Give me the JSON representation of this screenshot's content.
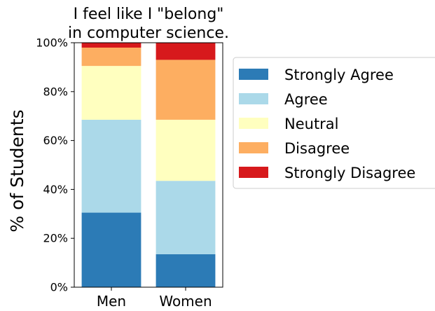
{
  "chart_data": {
    "type": "bar",
    "stacked": true,
    "title": "I feel like I \"belong\" in computer science.",
    "title_lines": [
      "I feel like I \"belong\"",
      "in computer science."
    ],
    "xlabel": "",
    "ylabel": "% of Students",
    "categories": [
      "Men",
      "Women"
    ],
    "ylim": [
      0,
      100
    ],
    "yticks": [
      "0%",
      "20%",
      "40%",
      "60%",
      "80%",
      "100%"
    ],
    "grid": false,
    "legend_position": "right",
    "series": [
      {
        "name": "Strongly Agree",
        "color": "#2c7bb6",
        "values": [
          30.5,
          13.5
        ]
      },
      {
        "name": "Agree",
        "color": "#abd9e9",
        "values": [
          38,
          30
        ]
      },
      {
        "name": "Neutral",
        "color": "#ffffbf",
        "values": [
          22,
          25
        ]
      },
      {
        "name": "Disagree",
        "color": "#fdae61",
        "values": [
          7.5,
          24.5
        ]
      },
      {
        "name": "Strongly Disagree",
        "color": "#d7191c",
        "values": [
          2,
          7
        ]
      }
    ]
  }
}
